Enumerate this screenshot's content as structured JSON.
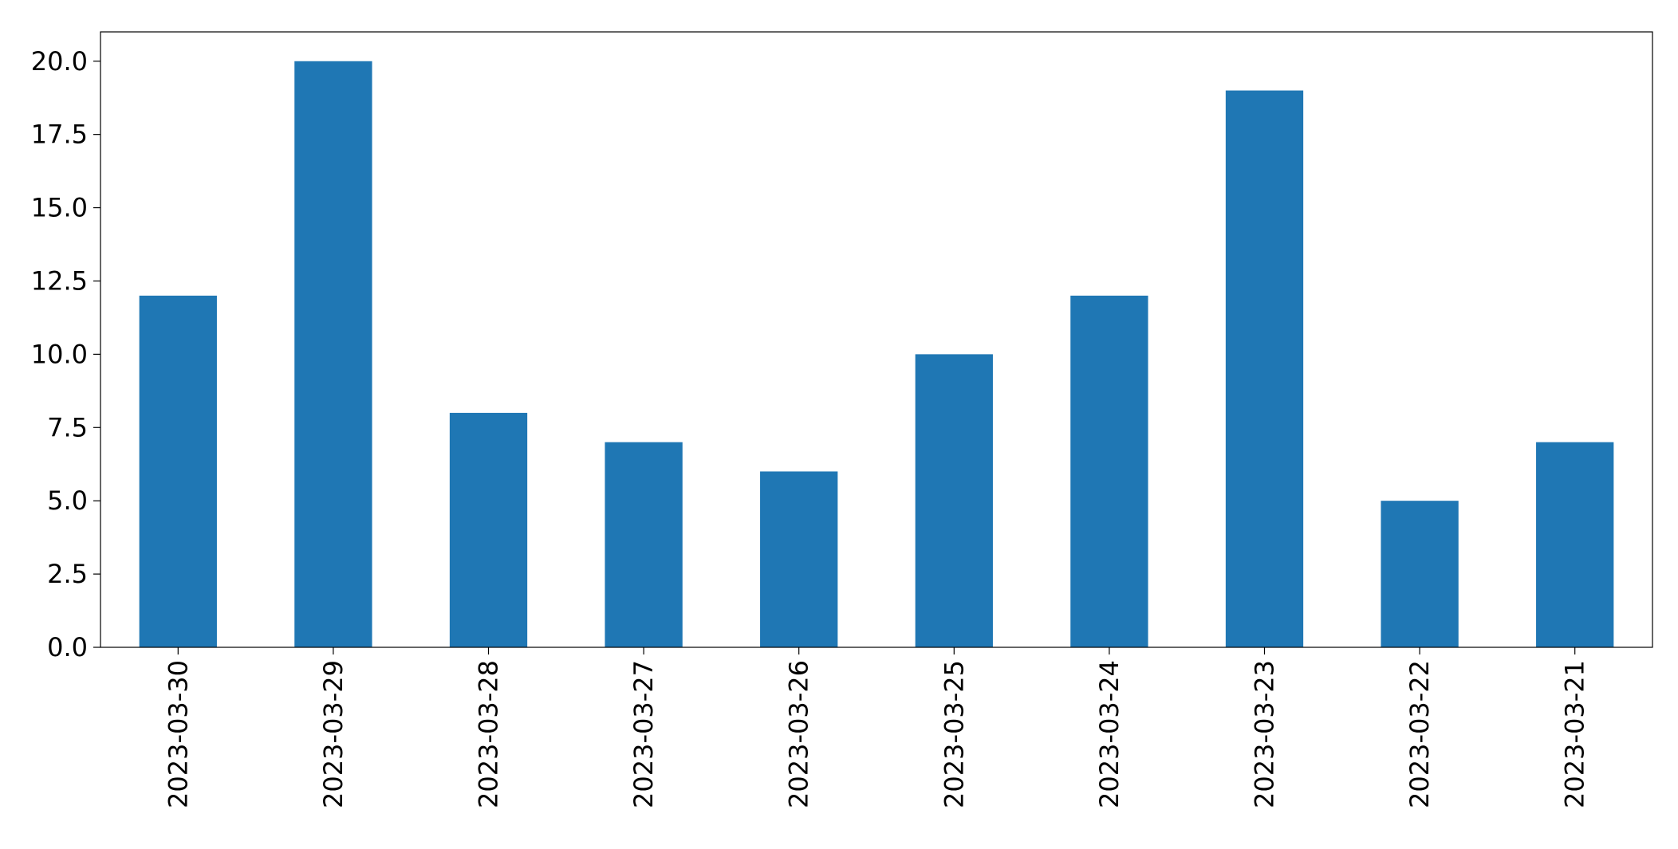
{
  "chart_data": {
    "type": "bar",
    "title": "",
    "xlabel": "",
    "ylabel": "",
    "categories": [
      "2023-03-30",
      "2023-03-29",
      "2023-03-28",
      "2023-03-27",
      "2023-03-26",
      "2023-03-25",
      "2023-03-24",
      "2023-03-23",
      "2023-03-22",
      "2023-03-21"
    ],
    "values": [
      12,
      20,
      8,
      7,
      6,
      10,
      12,
      19,
      5,
      7
    ],
    "ylim": [
      0,
      21
    ],
    "yticks": [
      "0.0",
      "2.5",
      "5.0",
      "7.5",
      "10.0",
      "12.5",
      "15.0",
      "17.5",
      "20.0"
    ],
    "bar_color": "#1f77b4",
    "grid": false,
    "legend": "none"
  }
}
